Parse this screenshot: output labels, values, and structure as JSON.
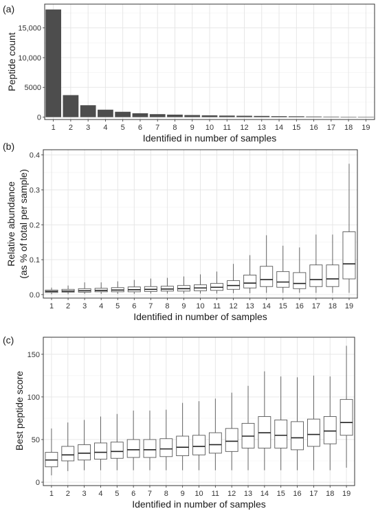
{
  "chart_data": [
    {
      "type": "bar",
      "panel_label": "(a)",
      "categories": [
        "1",
        "2",
        "3",
        "4",
        "5",
        "6",
        "7",
        "8",
        "9",
        "10",
        "11",
        "12",
        "13",
        "14",
        "15",
        "16",
        "17",
        "18",
        "19"
      ],
      "values": [
        18100,
        3700,
        2000,
        1250,
        900,
        650,
        500,
        420,
        350,
        300,
        260,
        230,
        200,
        160,
        140,
        100,
        80,
        60,
        40
      ],
      "xlabel": "Identified in number of samples",
      "ylabel": "Peptide count",
      "ylim": [
        -400,
        19000
      ],
      "yticks": [
        0,
        5000,
        10000,
        15000
      ],
      "ytick_labels": [
        "0",
        "5000",
        "10,000",
        "15,000"
      ],
      "grid": true,
      "bar_color": "#4d4d4d"
    },
    {
      "type": "box",
      "panel_label": "(b)",
      "categories": [
        "1",
        "2",
        "3",
        "4",
        "5",
        "6",
        "7",
        "8",
        "9",
        "10",
        "11",
        "12",
        "13",
        "14",
        "15",
        "16",
        "17",
        "18",
        "19"
      ],
      "boxes": [
        {
          "min": 0.001,
          "q1": 0.006,
          "median": 0.009,
          "q3": 0.013,
          "max": 0.02
        },
        {
          "min": 0.001,
          "q1": 0.007,
          "median": 0.01,
          "q3": 0.015,
          "max": 0.026
        },
        {
          "min": 0.002,
          "q1": 0.007,
          "median": 0.011,
          "q3": 0.017,
          "max": 0.035
        },
        {
          "min": 0.002,
          "q1": 0.008,
          "median": 0.012,
          "q3": 0.018,
          "max": 0.035
        },
        {
          "min": 0.002,
          "q1": 0.008,
          "median": 0.013,
          "q3": 0.02,
          "max": 0.038
        },
        {
          "min": 0.002,
          "q1": 0.008,
          "median": 0.014,
          "q3": 0.022,
          "max": 0.042
        },
        {
          "min": 0.003,
          "q1": 0.009,
          "median": 0.015,
          "q3": 0.023,
          "max": 0.046
        },
        {
          "min": 0.003,
          "q1": 0.01,
          "median": 0.016,
          "q3": 0.024,
          "max": 0.048
        },
        {
          "min": 0.003,
          "q1": 0.01,
          "median": 0.017,
          "q3": 0.026,
          "max": 0.052
        },
        {
          "min": 0.003,
          "q1": 0.011,
          "median": 0.019,
          "q3": 0.028,
          "max": 0.058
        },
        {
          "min": 0.003,
          "q1": 0.012,
          "median": 0.021,
          "q3": 0.032,
          "max": 0.066
        },
        {
          "min": 0.004,
          "q1": 0.015,
          "median": 0.026,
          "q3": 0.04,
          "max": 0.088
        },
        {
          "min": 0.004,
          "q1": 0.019,
          "median": 0.033,
          "q3": 0.056,
          "max": 0.113
        },
        {
          "min": 0.005,
          "q1": 0.023,
          "median": 0.043,
          "q3": 0.081,
          "max": 0.17
        },
        {
          "min": 0.005,
          "q1": 0.021,
          "median": 0.036,
          "q3": 0.066,
          "max": 0.14
        },
        {
          "min": 0.005,
          "q1": 0.017,
          "median": 0.032,
          "q3": 0.063,
          "max": 0.135
        },
        {
          "min": 0.005,
          "q1": 0.023,
          "median": 0.043,
          "q3": 0.085,
          "max": 0.172
        },
        {
          "min": 0.005,
          "q1": 0.023,
          "median": 0.045,
          "q3": 0.085,
          "max": 0.172
        },
        {
          "min": 0.005,
          "q1": 0.045,
          "median": 0.088,
          "q3": 0.18,
          "max": 0.375
        }
      ],
      "xlabel": "Identified in number of samples",
      "ylabel_lines": [
        "Relative abundance",
        "(as % of total per sample)"
      ],
      "ylim": [
        -0.01,
        0.415
      ],
      "yticks": [
        0.0,
        0.1,
        0.2,
        0.3,
        0.4
      ],
      "ytick_labels": [
        "0.0",
        "0.1",
        "0.2",
        "0.3",
        "0.4"
      ],
      "grid": true
    },
    {
      "type": "box",
      "panel_label": "(c)",
      "categories": [
        "1",
        "2",
        "3",
        "4",
        "5",
        "6",
        "7",
        "8",
        "9",
        "10",
        "11",
        "12",
        "13",
        "14",
        "15",
        "16",
        "17",
        "18",
        "19"
      ],
      "boxes": [
        {
          "min": 8,
          "q1": 18,
          "median": 26,
          "q3": 35,
          "max": 63
        },
        {
          "min": 13,
          "q1": 25,
          "median": 32,
          "q3": 42,
          "max": 70
        },
        {
          "min": 14,
          "q1": 26,
          "median": 34,
          "q3": 44,
          "max": 73
        },
        {
          "min": 14,
          "q1": 27,
          "median": 35,
          "q3": 46,
          "max": 77
        },
        {
          "min": 14,
          "q1": 28,
          "median": 36,
          "q3": 47,
          "max": 80
        },
        {
          "min": 14,
          "q1": 29,
          "median": 38,
          "q3": 50,
          "max": 84
        },
        {
          "min": 14,
          "q1": 29,
          "median": 38,
          "q3": 50,
          "max": 84
        },
        {
          "min": 14,
          "q1": 30,
          "median": 39,
          "q3": 51,
          "max": 85
        },
        {
          "min": 14,
          "q1": 31,
          "median": 41,
          "q3": 54,
          "max": 93
        },
        {
          "min": 14,
          "q1": 32,
          "median": 42,
          "q3": 55,
          "max": 95
        },
        {
          "min": 14,
          "q1": 34,
          "median": 44,
          "q3": 58,
          "max": 98
        },
        {
          "min": 14,
          "q1": 36,
          "median": 48,
          "q3": 63,
          "max": 105
        },
        {
          "min": 14,
          "q1": 40,
          "median": 54,
          "q3": 69,
          "max": 113
        },
        {
          "min": 14,
          "q1": 40,
          "median": 58,
          "q3": 77,
          "max": 130
        },
        {
          "min": 14,
          "q1": 40,
          "median": 55,
          "q3": 73,
          "max": 124
        },
        {
          "min": 14,
          "q1": 38,
          "median": 52,
          "q3": 71,
          "max": 123
        },
        {
          "min": 14,
          "q1": 42,
          "median": 56,
          "q3": 74,
          "max": 125
        },
        {
          "min": 14,
          "q1": 45,
          "median": 60,
          "q3": 77,
          "max": 124
        },
        {
          "min": 17,
          "q1": 55,
          "median": 70,
          "q3": 97,
          "max": 160
        }
      ],
      "xlabel": "Identified in number of samples",
      "ylabel": "Best peptide score",
      "ylim": [
        -4,
        170
      ],
      "yticks": [
        0,
        50,
        100,
        150
      ],
      "ytick_labels": [
        "0",
        "50",
        "100",
        "150"
      ],
      "grid": true
    }
  ]
}
